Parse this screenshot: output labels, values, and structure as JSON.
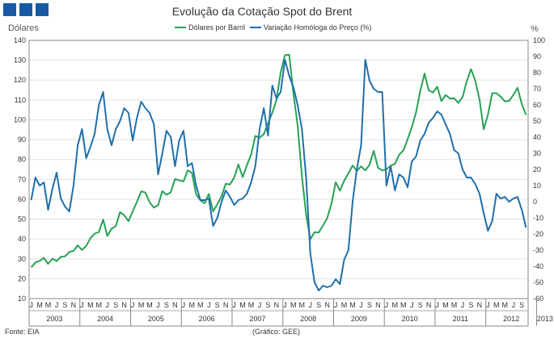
{
  "brand": {
    "color": "#1a5aa0"
  },
  "chart_data": {
    "type": "line",
    "title": "Evolução da Cotação Spot do Brent",
    "ylabel_left": "Dólares",
    "ylabel_right": "%",
    "source": "Fonte: EIA",
    "credit": "(Gráfico: GEE)",
    "ylim_left": [
      10,
      140
    ],
    "ylim_right": [
      -60,
      100
    ],
    "yticks_left": [
      10,
      20,
      30,
      40,
      50,
      60,
      70,
      80,
      90,
      100,
      110,
      120,
      130,
      140
    ],
    "yticks_right": [
      -60,
      -50,
      -40,
      -30,
      -20,
      -10,
      0,
      10,
      20,
      30,
      40,
      50,
      60,
      70,
      80,
      90,
      100
    ],
    "month_labels": [
      "J",
      "M",
      "M",
      "J",
      "S",
      "N"
    ],
    "years": [
      {
        "label": "2003",
        "start": 0,
        "months": 12
      },
      {
        "label": "2004",
        "start": 12,
        "months": 12
      },
      {
        "label": "2005",
        "start": 24,
        "months": 12
      },
      {
        "label": "2006",
        "start": 36,
        "months": 12
      },
      {
        "label": "2007",
        "start": 48,
        "months": 12
      },
      {
        "label": "2008",
        "start": 60,
        "months": 12
      },
      {
        "label": "2009",
        "start": 72,
        "months": 12
      },
      {
        "label": "2010",
        "start": 84,
        "months": 12
      },
      {
        "label": "2011",
        "start": 96,
        "months": 12
      },
      {
        "label": "2012",
        "start": 108,
        "months": 12
      },
      {
        "label": "2013",
        "start": 120,
        "months": 4
      }
    ],
    "series": [
      {
        "name": "Dólares por Barril",
        "axis": "left",
        "color": "#27a154",
        "values": [
          25.7,
          28.2,
          29.0,
          30.5,
          27.5,
          30.1,
          28.9,
          31.0,
          31.3,
          33.5,
          34.0,
          36.8,
          34.5,
          36.5,
          40.4,
          42.7,
          43.5,
          49.8,
          41.6,
          45.2,
          46.5,
          53.5,
          52.0,
          49.0,
          53.9,
          58.7,
          64.0,
          63.4,
          58.5,
          55.8,
          57.0,
          64.1,
          62.3,
          63.5,
          70.2,
          69.6,
          69.0,
          74.6,
          73.3,
          62.5,
          59.5,
          58.0,
          62.7,
          53.9,
          57.5,
          61.5,
          67.8,
          67.5,
          71.0,
          77.5,
          71.2,
          77.2,
          82.5,
          91.9,
          91.0,
          92.8,
          98.2,
          103.6,
          110.0,
          123.9,
          132.5,
          132.8,
          113.2,
          97.3,
          71.7,
          52.4,
          39.9,
          43.4,
          43.3,
          46.8,
          50.6,
          57.9,
          68.6,
          64.4,
          69.3,
          73.1,
          77.0,
          74.3,
          76.6,
          74.5,
          77.4,
          84.4,
          75.9,
          74.5,
          75.1,
          76.9,
          77.8,
          82.4,
          84.6,
          90.2,
          96.3,
          103.7,
          114.6,
          123.3,
          114.8,
          113.8,
          116.7,
          109.4,
          112.5,
          110.7,
          110.9,
          108.5,
          111.5,
          119.5,
          125.5,
          119.8,
          110.3,
          95.2,
          102.6,
          113.4,
          113.4,
          111.7,
          109.3,
          109.5,
          112.5,
          116.1,
          108.0,
          102.5
        ]
      },
      {
        "name": "Variação Homóloga do Preço (%)",
        "axis": "right",
        "color": "#1f6fab",
        "values": [
          1,
          15,
          10,
          12,
          -5,
          8,
          18,
          2,
          -3,
          -6,
          10,
          35,
          45,
          27,
          34,
          42,
          60,
          68,
          45,
          35,
          45,
          50,
          58,
          55,
          38,
          52,
          62,
          58,
          55,
          48,
          17,
          30,
          44,
          40,
          22,
          38,
          44,
          22,
          24,
          10,
          1,
          1,
          2,
          -15,
          -10,
          0,
          7,
          3,
          -2,
          1,
          2,
          5,
          12,
          22,
          45,
          58,
          41,
          72,
          64,
          68,
          88,
          78,
          71,
          60,
          45,
          15,
          -32,
          -50,
          -55,
          -52,
          -53,
          -52,
          -48,
          -51,
          -36,
          -30,
          0,
          20,
          35,
          88,
          75,
          70,
          68,
          68,
          10,
          22,
          7,
          17,
          15,
          9,
          25,
          28,
          38,
          42,
          49,
          52,
          56,
          54,
          48,
          42,
          32,
          30,
          20,
          15,
          15,
          11,
          5,
          -7,
          -18,
          -12,
          5,
          2,
          3,
          0,
          2,
          3,
          -5,
          -16
        ]
      }
    ]
  }
}
